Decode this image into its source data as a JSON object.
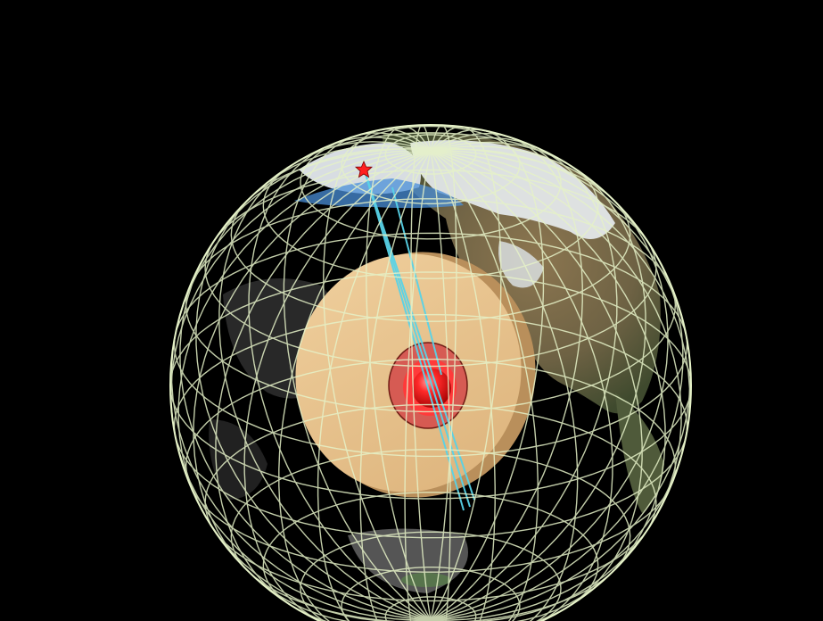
{
  "scene": {
    "subject": "globe-cutaway",
    "colors": {
      "background": "#000000",
      "grid": "#e6f2c8",
      "land": "#7a6a4a",
      "snow": "#e9eef2",
      "outer_core": "#e9c48f",
      "outer_core_edge": "#b98f5b",
      "inner_core": "#ff2a2a",
      "inner_core_ring": "#d44a4a",
      "seismic_rays": "#58d3e8",
      "epicenter": "#ff2020",
      "ocean_shadow": "#3a3a3a"
    },
    "icons": [
      "epicenter-star-icon"
    ]
  }
}
